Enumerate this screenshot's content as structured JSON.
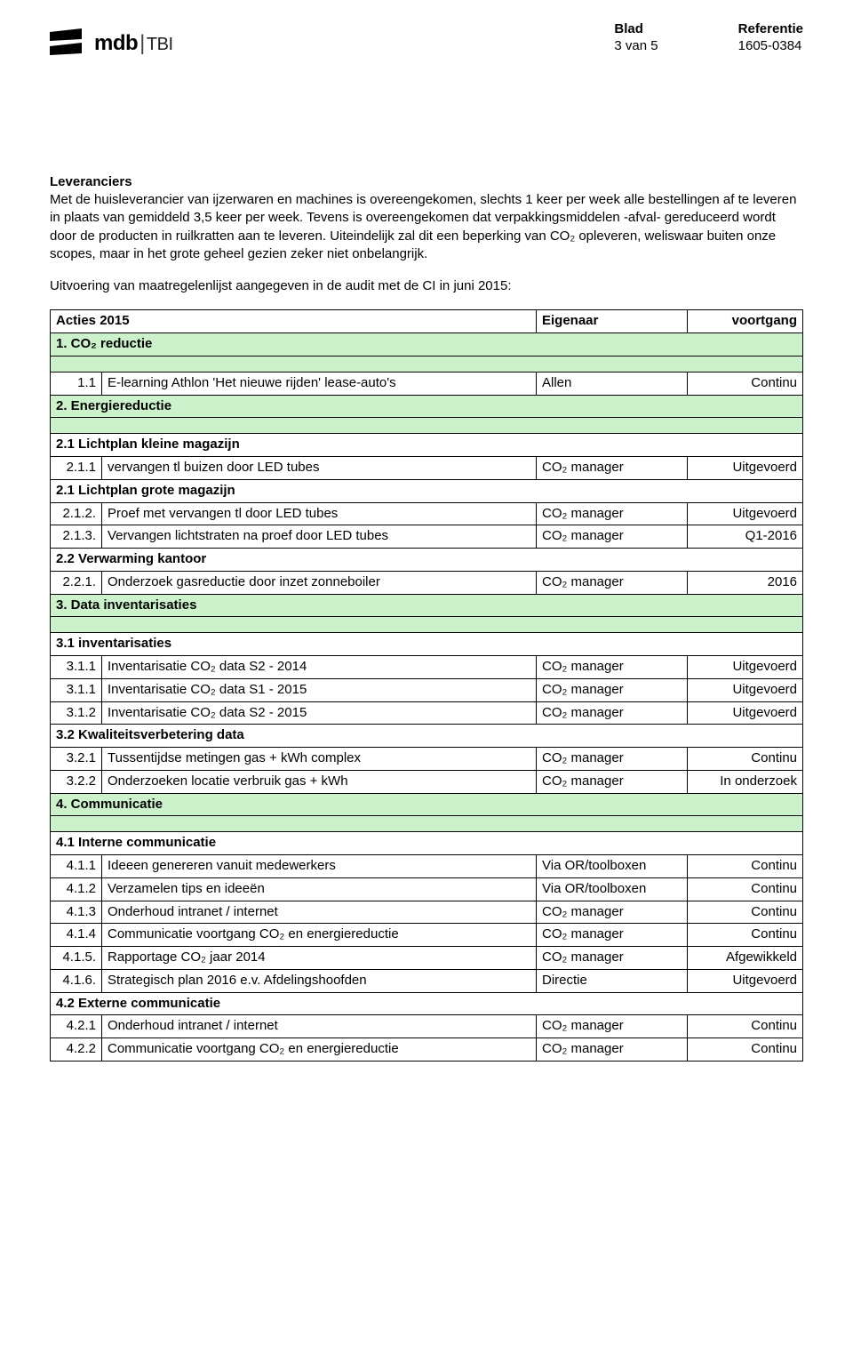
{
  "colors": {
    "section_bg": "#ccf2cc",
    "text": "#000000",
    "background": "#ffffff",
    "border": "#000000"
  },
  "header": {
    "logo_main": "mdb",
    "logo_sub": "TBI",
    "meta": {
      "blad_label": "Blad",
      "blad_value": "3 van 5",
      "ref_label": "Referentie",
      "ref_value": "1605-0384"
    }
  },
  "body": {
    "section_title": "Leveranciers",
    "para1": "Met de huisleverancier van ijzerwaren en machines is overeengekomen, slechts 1 keer per week alle bestellingen af te leveren in plaats van gemiddeld 3,5 keer per week. Tevens is overeengekomen dat verpakkingsmiddelen -afval- gereduceerd wordt door de producten in ruilkratten aan te leveren. Uiteindelijk zal dit een beperking van CO₂ opleveren, weliswaar buiten onze scopes, maar in het grote geheel gezien zeker niet onbelangrijk.",
    "intro": "Uitvoering van maatregelenlijst aangegeven in de audit met de CI in juni 2015:"
  },
  "table": {
    "head": {
      "c1": "Acties 2015",
      "c2": "Eigenaar",
      "c3": "voortgang"
    },
    "sections": [
      {
        "title": "1. CO₂ reductie",
        "subs": [
          {
            "rows": [
              {
                "num": "1.1",
                "desc": "E-learning Athlon 'Het nieuwe rijden' lease-auto's",
                "owner": "Allen",
                "status": "Continu"
              }
            ]
          }
        ]
      },
      {
        "title": "2. Energiereductie",
        "subs": [
          {
            "title": "2.1 Lichtplan kleine magazijn",
            "rows": [
              {
                "num": "2.1.1",
                "desc": "vervangen tl buizen door LED tubes",
                "owner": "CO₂ manager",
                "status": "Uitgevoerd"
              }
            ]
          },
          {
            "title": "2.1 Lichtplan grote magazijn",
            "rows": [
              {
                "num": "2.1.2.",
                "desc": "Proef met vervangen tl door LED tubes",
                "owner": "CO₂ manager",
                "status": "Uitgevoerd"
              },
              {
                "num": "2.1.3.",
                "desc": "Vervangen lichtstraten na proef door LED tubes",
                "owner": "CO₂ manager",
                "status": "Q1-2016"
              }
            ]
          },
          {
            "title": "2.2 Verwarming kantoor",
            "rows": [
              {
                "num": "2.2.1.",
                "desc": "Onderzoek gasreductie door inzet zonneboiler",
                "owner": "CO₂ manager",
                "status": "2016"
              }
            ]
          }
        ]
      },
      {
        "title": "3. Data inventarisaties",
        "subs": [
          {
            "title": "3.1 inventarisaties",
            "rows": [
              {
                "num": "3.1.1",
                "desc": "Inventarisatie CO₂ data S2 - 2014",
                "owner": "CO₂ manager",
                "status": "Uitgevoerd"
              },
              {
                "num": "3.1.1",
                "desc": "Inventarisatie CO₂ data S1 - 2015",
                "owner": "CO₂ manager",
                "status": "Uitgevoerd"
              },
              {
                "num": "3.1.2",
                "desc": "Inventarisatie CO₂ data S2 - 2015",
                "owner": "CO₂ manager",
                "status": "Uitgevoerd"
              }
            ]
          },
          {
            "title": "3.2 Kwaliteitsverbetering data",
            "rows": [
              {
                "num": "3.2.1",
                "desc": "Tussentijdse metingen gas + kWh complex",
                "owner": "CO₂ manager",
                "status": "Continu"
              },
              {
                "num": "3.2.2",
                "desc": "Onderzoeken locatie verbruik gas + kWh",
                "owner": "CO₂ manager",
                "status": "In onderzoek"
              }
            ]
          }
        ]
      },
      {
        "title": "4. Communicatie",
        "subs": [
          {
            "title": "4.1 Interne communicatie",
            "rows": [
              {
                "num": "4.1.1",
                "desc": "Ideeen genereren vanuit medewerkers",
                "owner": "Via OR/toolboxen",
                "status": "Continu"
              },
              {
                "num": "4.1.2",
                "desc": "Verzamelen tips en ideeën",
                "owner": "Via OR/toolboxen",
                "status": "Continu"
              },
              {
                "num": "4.1.3",
                "desc": "Onderhoud intranet / internet",
                "owner": "CO₂ manager",
                "status": "Continu"
              },
              {
                "num": "4.1.4",
                "desc": "Communicatie voortgang CO₂ en energiereductie",
                "owner": "CO₂ manager",
                "status": "Continu"
              },
              {
                "num": "4.1.5.",
                "desc": "Rapportage CO₂ jaar 2014",
                "owner": "CO₂ manager",
                "status": "Afgewikkeld"
              },
              {
                "num": "4.1.6.",
                "desc": "Strategisch plan 2016 e.v. Afdelingshoofden",
                "owner": "Directie",
                "status": "Uitgevoerd"
              }
            ]
          },
          {
            "title": "4.2 Externe communicatie",
            "rows": [
              {
                "num": "4.2.1",
                "desc": "Onderhoud intranet / internet",
                "owner": "CO₂ manager",
                "status": "Continu"
              },
              {
                "num": "4.2.2",
                "desc": "Communicatie voortgang CO₂ en energiereductie",
                "owner": "CO₂ manager",
                "status": "Continu"
              }
            ]
          }
        ]
      }
    ]
  }
}
